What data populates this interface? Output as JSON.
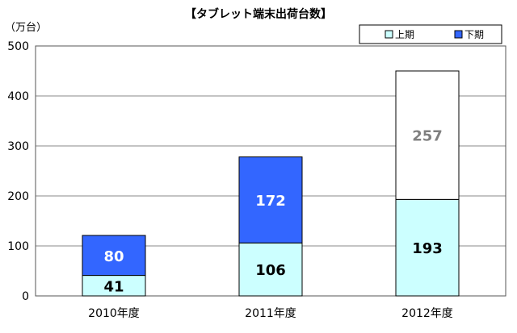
{
  "chart_data": {
    "type": "bar",
    "stacked": true,
    "title": "【タブレット端末出荷台数】",
    "ylabel": "（万台）",
    "categories": [
      "2010年度",
      "2011年度",
      "2012年度"
    ],
    "series": [
      {
        "name": "上期",
        "values": [
          41,
          106,
          193
        ],
        "color": "#ccffff",
        "label_color": "#000000"
      },
      {
        "name": "下期",
        "values": [
          80,
          172,
          257
        ],
        "colors": [
          "#3366ff",
          "#3366ff",
          "#ffffff"
        ],
        "label_colors": [
          "#ffffff",
          "#ffffff",
          "#808080"
        ]
      }
    ],
    "ylim": [
      0,
      500
    ],
    "yticks": [
      "0",
      "100",
      "200",
      "300",
      "400",
      "500"
    ],
    "grid": true,
    "legend_position": "top-right"
  }
}
